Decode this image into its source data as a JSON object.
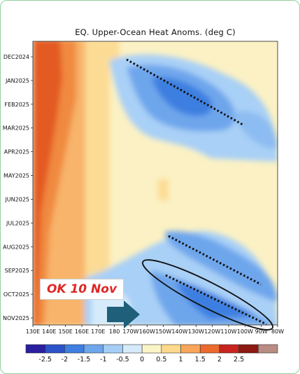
{
  "chart_data": {
    "type": "heatmap",
    "title": "EQ. Upper-Ocean Heat Anoms. (deg C)",
    "x_ticks": [
      "130E",
      "140E",
      "150E",
      "160E",
      "170E",
      "180",
      "170W",
      "160W",
      "150W",
      "140W",
      "130W",
      "120W",
      "110W",
      "100W",
      "90W",
      "80W"
    ],
    "y_ticks": [
      "DEC2024",
      "JAN2025",
      "FEB2025",
      "MAR2025",
      "APR2025",
      "MAY2025",
      "JUN2025",
      "JUL2025",
      "AUG2025",
      "SEP2025",
      "OCT2025",
      "NOV2025"
    ],
    "colorbar_ticks": [
      "-2.5",
      "-2",
      "-1.5",
      "-1",
      "-0.5",
      "0",
      "0.5",
      "1",
      "1.5",
      "2",
      "2.5"
    ],
    "colorbar_colors": [
      "#2a1fa0",
      "#2c52c8",
      "#3e7fe0",
      "#6ea6ec",
      "#a5cdf6",
      "#d5ebfb",
      "#fbf4c7",
      "#fcd98c",
      "#f9a55a",
      "#ec6a2e",
      "#c8241e",
      "#8c1912",
      "#b98c84"
    ],
    "annotation": "OK 10 Nov",
    "features": [
      "dotted downward-trend lines over cold anomalies",
      "ellipse around SEP-OCT 2025 cold tongue",
      "arrow pointing east"
    ]
  }
}
